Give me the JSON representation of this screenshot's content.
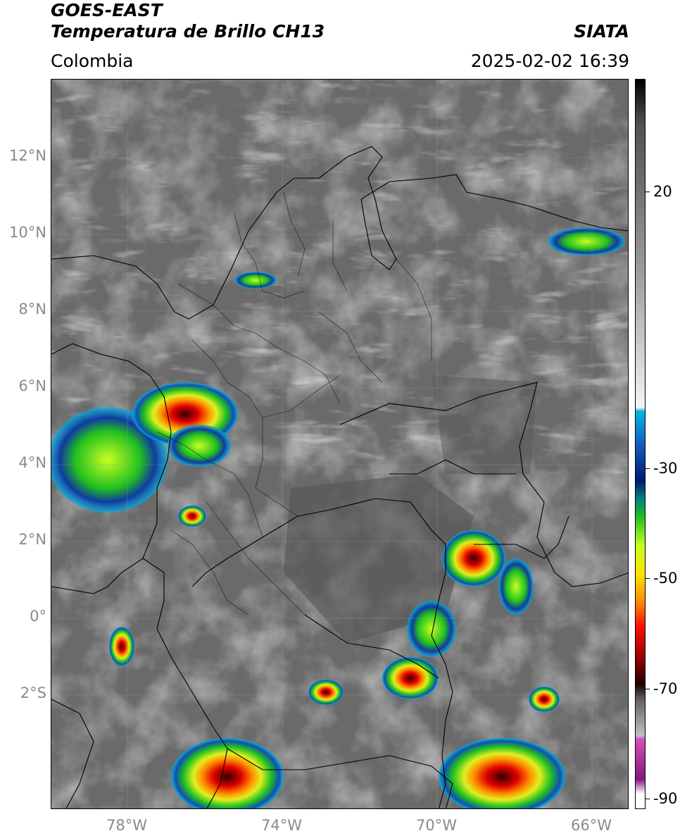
{
  "header": {
    "satellite": "GOES-EAST",
    "product": "Temperatura de Brillo CH13",
    "region": "Colombia",
    "agency": "SIATA",
    "datetime": "2025-02-02 16:39"
  },
  "map": {
    "lat_labels": [
      "12°N",
      "10°N",
      "8°N",
      "6°N",
      "4°N",
      "2°N",
      "0°",
      "2°S"
    ],
    "lon_labels": [
      "78°W",
      "74°W",
      "70°W",
      "66°W"
    ],
    "background_color": "#6e6e6e",
    "border_color": "#000000"
  },
  "colorbar": {
    "tick_labels": [
      "20",
      "-30",
      "-50",
      "-70",
      "-90"
    ],
    "stops": [
      {
        "color": "#000000"
      },
      {
        "color": "#505050"
      },
      {
        "color": "#9a9a9a"
      },
      {
        "color": "#f4f4f4"
      },
      {
        "color": "#00b8e0"
      },
      {
        "color": "#1060c0"
      },
      {
        "color": "#001870"
      },
      {
        "color": "#008080"
      },
      {
        "color": "#20c020"
      },
      {
        "color": "#c8ff20"
      },
      {
        "color": "#ffe000"
      },
      {
        "color": "#ff8000"
      },
      {
        "color": "#ff1000"
      },
      {
        "color": "#a00000"
      },
      {
        "color": "#200000"
      },
      {
        "color": "#606060"
      },
      {
        "color": "#c0c0c0"
      },
      {
        "color": "#d84fb8"
      },
      {
        "color": "#801880"
      },
      {
        "color": "#ffffff"
      }
    ]
  }
}
